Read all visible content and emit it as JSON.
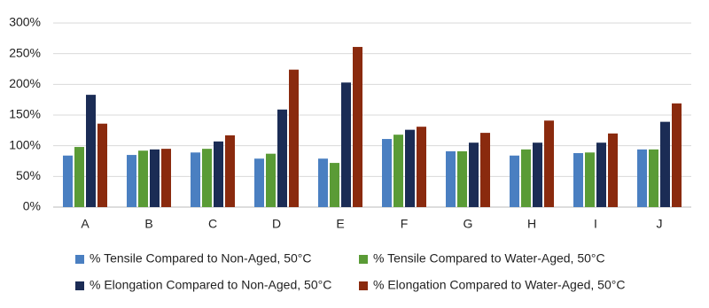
{
  "chart_data": {
    "type": "bar",
    "categories": [
      "A",
      "B",
      "C",
      "D",
      "E",
      "F",
      "G",
      "H",
      "I",
      "J"
    ],
    "series": [
      {
        "name": "% Tensile Compared to Non-Aged, 50°C",
        "color": "#4a7fc1",
        "values": [
          84,
          85,
          89,
          79,
          79,
          111,
          91,
          84,
          88,
          94
        ]
      },
      {
        "name": "% Tensile Compared to Water-Aged, 50°C",
        "color": "#5a9b36",
        "values": [
          98,
          92,
          95,
          87,
          72,
          118,
          91,
          94,
          89,
          94
        ]
      },
      {
        "name": "% Elongation Compared to Non-Aged, 50°C",
        "color": "#1b2c55",
        "values": [
          183,
          94,
          107,
          159,
          203,
          126,
          105,
          105,
          105,
          139
        ]
      },
      {
        "name": "% Elongation Compared to Water-Aged, 50°C",
        "color": "#8a2a0e",
        "values": [
          136,
          95,
          117,
          224,
          261,
          131,
          121,
          141,
          120,
          169
        ]
      }
    ],
    "ylim": [
      0,
      300
    ],
    "yticks": [
      {
        "value": 0,
        "label": "0%"
      },
      {
        "value": 50,
        "label": "50%"
      },
      {
        "value": 100,
        "label": "100%"
      },
      {
        "value": 150,
        "label": "150%"
      },
      {
        "value": 200,
        "label": "200%"
      },
      {
        "value": 250,
        "label": "250%"
      },
      {
        "value": 300,
        "label": "300%"
      }
    ],
    "grid": true,
    "legend": "bottom"
  }
}
